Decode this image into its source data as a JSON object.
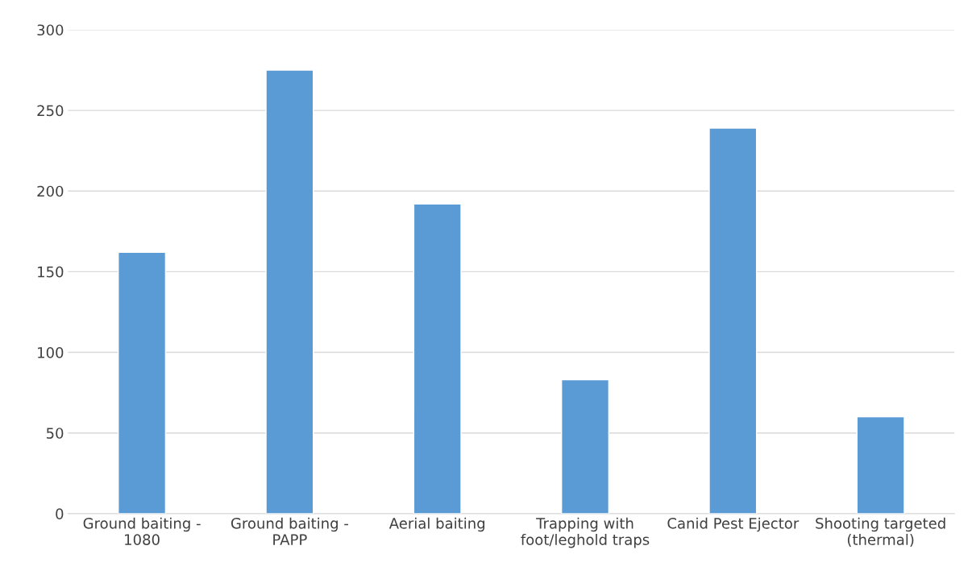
{
  "chart_data": {
    "type": "bar",
    "categories": [
      "Ground baiting -\n1080",
      "Ground baiting -\nPAPP",
      "Aerial baiting",
      "Trapping with\nfoot/leghold traps",
      "Canid Pest Ejector",
      "Shooting targeted\n(thermal)"
    ],
    "values": [
      162,
      275,
      192,
      83,
      239,
      60
    ],
    "color": "#5b9bd5",
    "ylim": [
      0,
      300
    ],
    "yticks": [
      0,
      50,
      100,
      150,
      200,
      250,
      300
    ],
    "grid": "y",
    "legend": false
  }
}
